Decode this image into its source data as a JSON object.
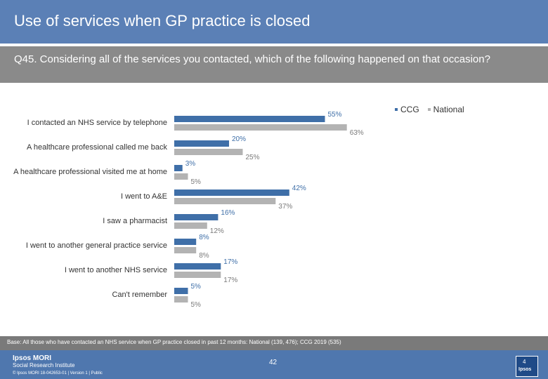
{
  "header": {
    "title": "Use of services when GP practice is closed",
    "question": "Q45. Considering all of the services you contacted, which of the following happened on that occasion?"
  },
  "legend": {
    "items": [
      {
        "label": "CCG",
        "color": "#3f6fa8"
      },
      {
        "label": "National",
        "color": "#b3b3b3"
      }
    ],
    "placement": "top-right"
  },
  "chart_data": {
    "type": "bar",
    "orientation": "horizontal",
    "categories": [
      "I contacted an NHS service by telephone",
      "A healthcare professional called me back",
      "A healthcare professional visited me at home",
      "I went to A&E",
      "I saw a pharmacist",
      "I went to another general practice service",
      "I went to another NHS service",
      "Can't remember"
    ],
    "series": [
      {
        "name": "CCG",
        "color": "#3f6fa8",
        "label_color": "#3f6fa8",
        "values": [
          55,
          20,
          3,
          42,
          16,
          8,
          17,
          5
        ]
      },
      {
        "name": "National",
        "color": "#b3b3b3",
        "label_color": "#7a7a7a",
        "values": [
          63,
          25,
          5,
          37,
          12,
          8,
          17,
          5
        ]
      }
    ],
    "value_suffix": "%",
    "xlim": [
      0,
      100
    ],
    "grid": false
  },
  "footer": {
    "base": "Base: All those who have contacted an NHS service when GP practice closed in past 12 months: National (139, 476); CCG 2019 (535)",
    "logo_line1": "Ipsos MORI",
    "logo_line2": "Social Research Institute",
    "copyright": "© Ipsos MORI      18-042653-01 | Version 1 | Public",
    "page": "42",
    "logo_mark": "4",
    "logo_word": "Ipsos"
  }
}
